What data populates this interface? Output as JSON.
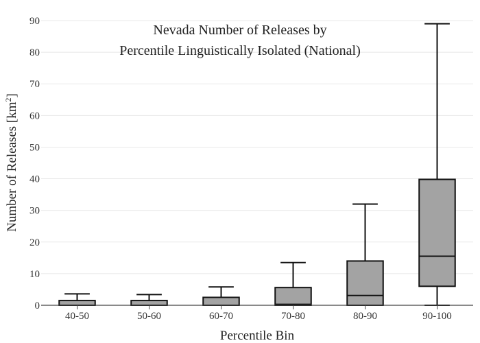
{
  "chart_data": {
    "type": "box",
    "title_line1": "Nevada Number of Releases by",
    "title_line2": "Percentile Linguistically Isolated (National)",
    "xlabel": "Percentile Bin",
    "ylabel_main": "Number of Releases  [km",
    "ylabel_sup": "2",
    "ylabel_end": "]",
    "ylim": [
      0,
      90
    ],
    "yticks": [
      0,
      10,
      20,
      30,
      40,
      50,
      60,
      70,
      80,
      90
    ],
    "grid": true,
    "box_color": "#a3a3a3",
    "categories": [
      "40-50",
      "50-60",
      "60-70",
      "70-80",
      "80-90",
      "90-100"
    ],
    "boxes": [
      {
        "min": 0,
        "q1": 0,
        "median": 0,
        "q3": 1.5,
        "max": 3.6
      },
      {
        "min": 0,
        "q1": 0,
        "median": 0,
        "q3": 1.5,
        "max": 3.4
      },
      {
        "min": 0,
        "q1": 0,
        "median": 0,
        "q3": 2.5,
        "max": 5.8
      },
      {
        "min": 0,
        "q1": 0,
        "median": 0.3,
        "q3": 5.6,
        "max": 13.5
      },
      {
        "min": 0,
        "q1": 0,
        "median": 3.1,
        "q3": 14,
        "max": 32
      },
      {
        "min": 0,
        "q1": 6,
        "median": 15.5,
        "q3": 39.8,
        "max": 89
      }
    ]
  }
}
